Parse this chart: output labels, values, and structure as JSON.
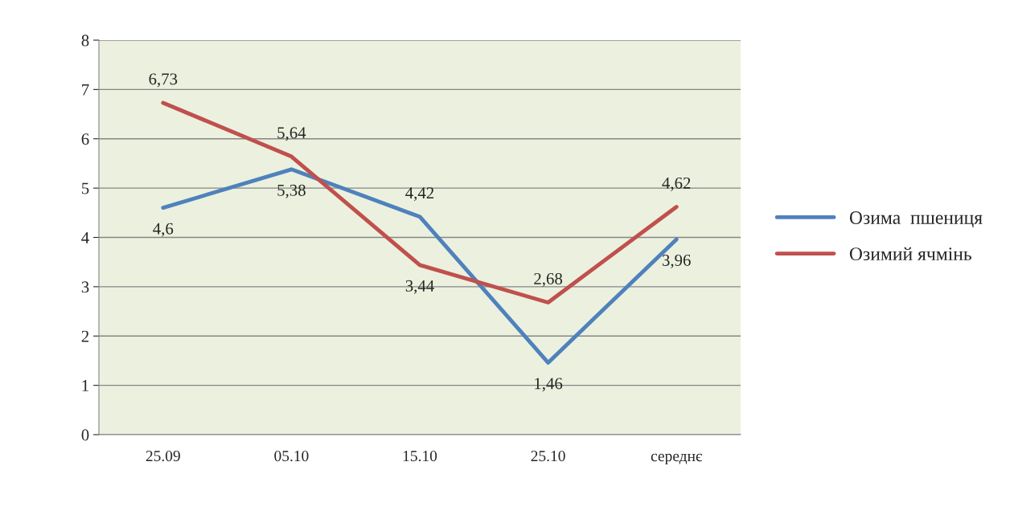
{
  "chart_data": {
    "type": "line",
    "categories": [
      "25.09",
      "05.10",
      "15.10",
      "25.10",
      "середнє"
    ],
    "series": [
      {
        "name": "Озима  пшениця",
        "color": "#4f81bd",
        "values": [
          4.6,
          5.38,
          4.42,
          1.46,
          3.96
        ],
        "value_labels": [
          "4,6",
          "5,38",
          "4,42",
          "1,46",
          "3,96"
        ]
      },
      {
        "name": "Озимий ячмінь",
        "color": "#c0504d",
        "values": [
          6.73,
          5.64,
          3.44,
          2.68,
          4.62
        ],
        "value_labels": [
          "6,73",
          "5,64",
          "3,44",
          "2,68",
          "4,62"
        ]
      }
    ],
    "ylim": [
      0,
      8
    ],
    "yticks": [
      0,
      1,
      2,
      3,
      4,
      5,
      6,
      7,
      8
    ],
    "grid": "y",
    "legend": "right",
    "marker": "none",
    "line_style": "solid"
  }
}
